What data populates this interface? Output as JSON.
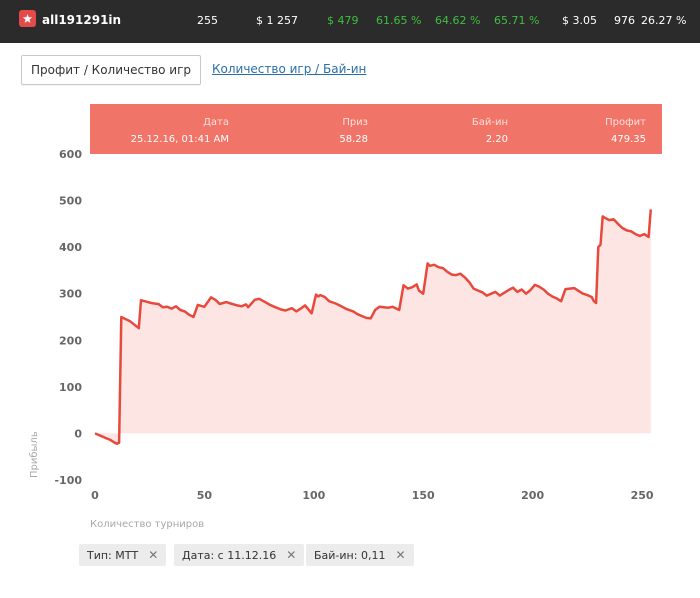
{
  "header": {
    "username": "all191291in",
    "stats": [
      {
        "value": "255",
        "color": "#ffffff"
      },
      {
        "value": "$ 1 257",
        "color": "#ffffff"
      },
      {
        "value": "$ 479",
        "color": "#3fbf3f"
      },
      {
        "value": "61.65 %",
        "color": "#3fbf3f"
      },
      {
        "value": "64.62 %",
        "color": "#3fbf3f"
      },
      {
        "value": "65.71 %",
        "color": "#3fbf3f"
      },
      {
        "value": "$ 3.05",
        "color": "#ffffff"
      },
      {
        "value": "976",
        "color": "#ffffff"
      },
      {
        "value": "26.27 %",
        "color": "#ffffff"
      }
    ]
  },
  "tabs": {
    "active": "Профит / Количество игр",
    "link": "Количество игр / Бай-ин"
  },
  "tooltip": {
    "date_label": "Дата",
    "date_value": "25.12.16, 01:41 AM",
    "prize_label": "Приз",
    "prize_value": "58.28",
    "buyin_label": "Бай-ин",
    "buyin_value": "2.20",
    "profit_label": "Профит",
    "profit_value": "479.35"
  },
  "filters": [
    {
      "label": "Тип: МТТ"
    },
    {
      "label": "Дата: с 11.12.16"
    },
    {
      "label": "Бай-ин: 0,11"
    }
  ],
  "chart_data": {
    "type": "area",
    "xlabel": "Количество турниров",
    "ylabel": "Прибыль",
    "xlim": [
      0,
      255
    ],
    "ylim": [
      -100,
      600
    ],
    "xticks": [
      0,
      50,
      100,
      150,
      200,
      250
    ],
    "yticks": [
      -100,
      0,
      100,
      200,
      300,
      400,
      500,
      600
    ],
    "line_color": "#e8493d",
    "fill_color": "#fde5e3",
    "series": [
      {
        "x": [
          0,
          3,
          5,
          7,
          9,
          10,
          11,
          12,
          16,
          20,
          21,
          25,
          27,
          29,
          31,
          33,
          35,
          37,
          39,
          41,
          43,
          45,
          47,
          50,
          53,
          55,
          57,
          60,
          62,
          65,
          67,
          69,
          70,
          73,
          75,
          77,
          80,
          82,
          85,
          87,
          90,
          92,
          94,
          96,
          99,
          101,
          102,
          103,
          105,
          107,
          110,
          113,
          115,
          118,
          120,
          122,
          124,
          126,
          128,
          130,
          132,
          134,
          136,
          139,
          141,
          143,
          145,
          147,
          148,
          150,
          152,
          153,
          155,
          157,
          159,
          161,
          163,
          165,
          167,
          169,
          171,
          173,
          175,
          177,
          179,
          181,
          183,
          185,
          187,
          189,
          191,
          193,
          195,
          197,
          199,
          201,
          203,
          205,
          207,
          209,
          211,
          213,
          215,
          217,
          219,
          221,
          223,
          225,
          227,
          228,
          229,
          230,
          231,
          232,
          233,
          235,
          237,
          239,
          241,
          243,
          245,
          247,
          249,
          251,
          253,
          254
        ],
        "y": [
          0,
          -6,
          -10,
          -14,
          -20,
          -22,
          -20,
          250,
          241,
          226,
          286,
          281,
          279,
          278,
          271,
          272,
          268,
          273,
          265,
          262,
          255,
          250,
          276,
          272,
          292,
          287,
          278,
          282,
          279,
          275,
          273,
          277,
          271,
          287,
          289,
          284,
          276,
          272,
          266,
          264,
          269,
          262,
          268,
          275,
          258,
          298,
          294,
          297,
          293,
          284,
          279,
          272,
          267,
          262,
          256,
          252,
          248,
          247,
          265,
          272,
          271,
          270,
          272,
          265,
          318,
          311,
          314,
          320,
          307,
          300,
          365,
          360,
          362,
          357,
          355,
          347,
          341,
          340,
          343,
          335,
          325,
          311,
          307,
          303,
          296,
          300,
          304,
          296,
          302,
          308,
          313,
          304,
          309,
          300,
          308,
          319,
          315,
          309,
          300,
          294,
          290,
          284,
          310,
          311,
          312,
          306,
          300,
          297,
          293,
          284,
          280,
          400,
          405,
          466,
          463,
          458,
          460,
          450,
          441,
          436,
          434,
          428,
          424,
          428,
          422,
          481
        ]
      }
    ]
  }
}
